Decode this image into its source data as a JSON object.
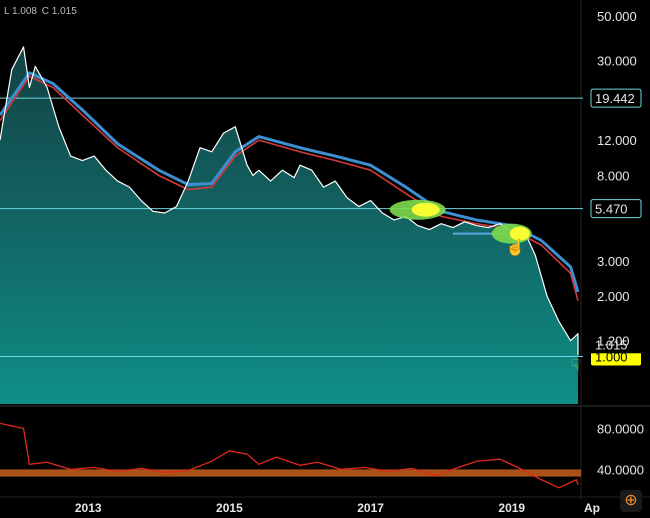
{
  "ohlc": {
    "low": "L 1.008",
    "close": "C 1.015"
  },
  "icons": {
    "zoom": "zoom-icon"
  },
  "colors": {
    "price_line": "#ffffff",
    "ma_fast": "#d23a3a",
    "ma_slow": "#3d8fd1",
    "area_top": "#1e6f73",
    "area_bottom": "#0e8f87",
    "horizontal_line": "#6fd6e0",
    "support_line": "#5aa9e6",
    "rsi_line": "#e0281e",
    "rsi_band": "#c8611d",
    "highlight_green": "#7ddc4c",
    "highlight_yellow": "#ffff33",
    "label_yellow": "#ffff00",
    "zoom_icon": "#f28a2e"
  },
  "chart_data": {
    "type": "line",
    "y_scale": "log",
    "ylim": [
      0.58,
      60
    ],
    "y_ticks": [
      50,
      30,
      12,
      8,
      3,
      2,
      1.2
    ],
    "y_tick_labels": [
      "50.000",
      "30.000",
      "12.000",
      "8.000",
      "3.000",
      "2.000",
      "1.200"
    ],
    "x_range": [
      "2011-10",
      "2020-04"
    ],
    "x_ticks": [
      "2013",
      "2015",
      "2017",
      "2019",
      "Ap"
    ],
    "price_series": {
      "x": [
        "2011-10",
        "2011-12",
        "2012-02",
        "2012-03",
        "2012-04",
        "2012-06",
        "2012-08",
        "2012-10",
        "2012-12",
        "2013-02",
        "2013-04",
        "2013-06",
        "2013-08",
        "2013-10",
        "2013-12",
        "2014-02",
        "2014-04",
        "2014-06",
        "2014-08",
        "2014-10",
        "2014-12",
        "2015-02",
        "2015-04",
        "2015-05",
        "2015-06",
        "2015-08",
        "2015-10",
        "2015-12",
        "2016-01",
        "2016-03",
        "2016-05",
        "2016-07",
        "2016-09",
        "2016-11",
        "2017-01",
        "2017-03",
        "2017-05",
        "2017-07",
        "2017-09",
        "2017-11",
        "2018-01",
        "2018-03",
        "2018-05",
        "2018-07",
        "2018-09",
        "2018-11",
        "2019-01",
        "2019-03",
        "2019-05",
        "2019-07",
        "2019-09",
        "2019-11",
        "2020-01",
        "2020-03"
      ],
      "values": [
        12,
        27,
        35,
        22,
        28,
        22,
        14,
        10,
        9.5,
        10,
        8.5,
        7.5,
        7,
        6,
        5.3,
        5.2,
        5.6,
        7.5,
        11,
        10.5,
        13,
        14,
        9,
        8,
        8.5,
        7.5,
        8.5,
        7.8,
        9,
        8.5,
        7,
        7.5,
        6.2,
        5.6,
        6,
        5.2,
        4.8,
        5,
        4.5,
        4.3,
        4.6,
        4.4,
        4.7,
        4.5,
        4.4,
        4.6,
        4.2,
        4.3,
        3.2,
        2.0,
        1.5,
        1.2,
        1.3,
        1.015
      ]
    },
    "ma_fast": {
      "x": [
        "2011-10",
        "2012-03",
        "2012-07",
        "2012-12",
        "2013-06",
        "2014-01",
        "2014-06",
        "2014-10",
        "2015-02",
        "2015-06",
        "2016-01",
        "2016-07",
        "2017-01",
        "2017-07",
        "2018-01",
        "2018-07",
        "2019-01",
        "2019-06",
        "2019-11",
        "2020-03"
      ],
      "values": [
        15,
        25,
        22,
        16,
        11,
        8,
        6.8,
        7,
        10,
        12,
        10.5,
        9.5,
        8.5,
        6.5,
        5,
        4.6,
        4.3,
        3.6,
        2.6,
        1.9
      ]
    },
    "ma_slow": {
      "x": [
        "2011-10",
        "2012-03",
        "2012-07",
        "2012-12",
        "2013-06",
        "2014-01",
        "2014-06",
        "2014-10",
        "2015-02",
        "2015-06",
        "2016-01",
        "2016-07",
        "2017-01",
        "2017-07",
        "2018-01",
        "2018-07",
        "2019-01",
        "2019-06",
        "2019-11",
        "2020-03"
      ],
      "values": [
        16,
        26,
        23,
        17,
        11.5,
        8.5,
        7.2,
        7.3,
        10.5,
        12.5,
        11,
        10,
        9,
        7,
        5.3,
        4.8,
        4.5,
        3.8,
        2.8,
        2.1
      ]
    },
    "horizontal_lines": [
      {
        "value": 19.442,
        "label": "19.442"
      },
      {
        "value": 5.47,
        "label": "5.470"
      },
      {
        "value": 1.0,
        "label": "1.000"
      }
    ],
    "current_price_label": "1.015",
    "support_segment": {
      "value": 4.1,
      "from": "2018-03",
      "to": "2018-12"
    },
    "highlights": [
      {
        "x": "2017-09",
        "value": 5.4
      },
      {
        "x": "2019-01",
        "value": 4.1
      }
    ],
    "rsi": {
      "ylim": [
        15,
        100
      ],
      "y_ticks": [
        80,
        40
      ],
      "y_tick_labels": [
        "80.0000",
        "40.0000"
      ],
      "band": [
        33,
        40
      ],
      "x": [
        "2011-10",
        "2012-02",
        "2012-03",
        "2012-06",
        "2012-10",
        "2013-02",
        "2013-06",
        "2013-10",
        "2014-02",
        "2014-06",
        "2014-10",
        "2015-01",
        "2015-04",
        "2015-06",
        "2015-09",
        "2016-01",
        "2016-04",
        "2016-08",
        "2016-12",
        "2017-04",
        "2017-08",
        "2017-12",
        "2018-03",
        "2018-07",
        "2018-11",
        "2019-02",
        "2019-06",
        "2019-09",
        "2019-12",
        "2020-03"
      ],
      "values": [
        85,
        80,
        45,
        47,
        40,
        42,
        38,
        41,
        37,
        39,
        48,
        58,
        55,
        45,
        52,
        44,
        47,
        40,
        42,
        38,
        41,
        34,
        40,
        48,
        50,
        42,
        30,
        22,
        30,
        25
      ]
    }
  }
}
